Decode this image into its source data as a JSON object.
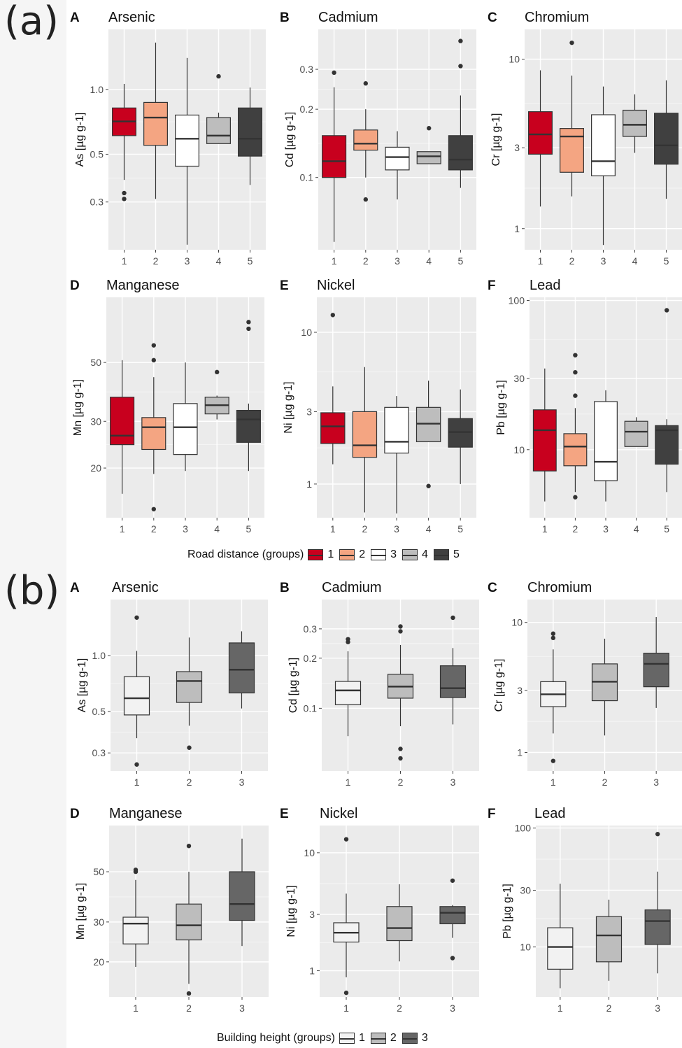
{
  "panels": [
    {
      "label": "(a)",
      "legend_title": "Road distance (groups)",
      "legend_keys": [
        "1",
        "2",
        "3",
        "4",
        "5"
      ],
      "colors": [
        "#c8001e",
        "#f4a582",
        "#ffffff",
        "#bdbdbd",
        "#404040"
      ]
    },
    {
      "label": "(b)",
      "legend_title": "Building height (groups)",
      "legend_keys": [
        "1",
        "2",
        "3"
      ],
      "colors": [
        "#f2f2f2",
        "#bdbdbd",
        "#666666"
      ]
    }
  ],
  "chart_data": [
    {
      "type": "box",
      "panel": "(a)",
      "letter": "A",
      "title": "Arsenic",
      "ylabel": "As [µg g-1]",
      "log_scale": true,
      "ylim": [
        0.18,
        1.9
      ],
      "yticks": [
        0.3,
        0.5,
        1.0
      ],
      "ytick_labels": [
        "0.3",
        "0.5",
        "1.0"
      ],
      "categories": [
        "1",
        "2",
        "3",
        "4",
        "5"
      ],
      "boxes": [
        {
          "min": 0.38,
          "q1": 0.61,
          "median": 0.71,
          "q3": 0.82,
          "max": 1.06,
          "outliers": [
            0.31,
            0.33
          ]
        },
        {
          "min": 0.31,
          "q1": 0.55,
          "median": 0.74,
          "q3": 0.87,
          "max": 1.65,
          "outliers": []
        },
        {
          "min": 0.19,
          "q1": 0.44,
          "median": 0.59,
          "q3": 0.76,
          "max": 1.4,
          "outliers": []
        },
        {
          "min": 0.56,
          "q1": 0.56,
          "median": 0.61,
          "q3": 0.74,
          "max": 0.78,
          "outliers": [
            1.15
          ]
        },
        {
          "min": 0.36,
          "q1": 0.49,
          "median": 0.59,
          "q3": 0.82,
          "max": 1.02,
          "outliers": []
        }
      ]
    },
    {
      "type": "box",
      "panel": "(a)",
      "letter": "B",
      "title": "Cadmium",
      "ylabel": "Cd [µg g-1]",
      "log_scale": true,
      "ylim": [
        0.048,
        0.45
      ],
      "yticks": [
        0.1,
        0.2,
        0.3
      ],
      "ytick_labels": [
        "0.1",
        "0.2",
        "0.3"
      ],
      "categories": [
        "1",
        "2",
        "3",
        "4",
        "5"
      ],
      "boxes": [
        {
          "min": 0.052,
          "q1": 0.1,
          "median": 0.118,
          "q3": 0.153,
          "max": 0.25,
          "outliers": [
            0.29
          ]
        },
        {
          "min": 0.1,
          "q1": 0.132,
          "median": 0.141,
          "q3": 0.162,
          "max": 0.2,
          "outliers": [
            0.08,
            0.26
          ]
        },
        {
          "min": 0.08,
          "q1": 0.108,
          "median": 0.123,
          "q3": 0.136,
          "max": 0.16,
          "outliers": []
        },
        {
          "min": 0.115,
          "q1": 0.115,
          "median": 0.124,
          "q3": 0.13,
          "max": 0.13,
          "outliers": [
            0.165
          ]
        },
        {
          "min": 0.09,
          "q1": 0.108,
          "median": 0.12,
          "q3": 0.153,
          "max": 0.23,
          "outliers": [
            0.31,
            0.4
          ]
        }
      ]
    },
    {
      "type": "box",
      "panel": "(a)",
      "letter": "C",
      "title": "Chromium",
      "ylabel": "Cr [µg g-1]",
      "log_scale": true,
      "ylim": [
        0.75,
        15
      ],
      "yticks": [
        1,
        3,
        10
      ],
      "ytick_labels": [
        "1",
        "3",
        "10"
      ],
      "categories": [
        "1",
        "2",
        "3",
        "4",
        "5"
      ],
      "boxes": [
        {
          "min": 1.35,
          "q1": 2.75,
          "median": 3.6,
          "q3": 4.9,
          "max": 8.6,
          "outliers": []
        },
        {
          "min": 1.55,
          "q1": 2.15,
          "median": 3.5,
          "q3": 3.9,
          "max": 8,
          "outliers": [
            12.5
          ]
        },
        {
          "min": 0.8,
          "q1": 2.05,
          "median": 2.5,
          "q3": 4.7,
          "max": 6.9,
          "outliers": []
        },
        {
          "min": 2.8,
          "q1": 3.5,
          "median": 4.1,
          "q3": 5.0,
          "max": 6.2,
          "outliers": []
        },
        {
          "min": 1.5,
          "q1": 2.4,
          "median": 3.1,
          "q3": 4.8,
          "max": 7.5,
          "outliers": []
        }
      ]
    },
    {
      "type": "box",
      "panel": "(a)",
      "letter": "D",
      "title": "Manganese",
      "ylabel": "Mn [µg g-1]",
      "log_scale": true,
      "ylim": [
        13,
        88
      ],
      "yticks": [
        20,
        30,
        50
      ],
      "ytick_labels": [
        "20",
        "30",
        "50"
      ],
      "categories": [
        "1",
        "2",
        "3",
        "4",
        "5"
      ],
      "boxes": [
        {
          "min": 16,
          "q1": 24.5,
          "median": 26.5,
          "q3": 37,
          "max": 51,
          "outliers": []
        },
        {
          "min": 19,
          "q1": 23.5,
          "median": 28.5,
          "q3": 31,
          "max": 44,
          "outliers": [
            14,
            51,
            58
          ]
        },
        {
          "min": 19.5,
          "q1": 22.5,
          "median": 28.5,
          "q3": 35,
          "max": 50,
          "outliers": []
        },
        {
          "min": 30.5,
          "q1": 32,
          "median": 34.5,
          "q3": 37,
          "max": 37.5,
          "outliers": [
            46
          ]
        },
        {
          "min": 19.5,
          "q1": 25,
          "median": 30.5,
          "q3": 33,
          "max": 35,
          "outliers": [
            67,
            71
          ]
        }
      ]
    },
    {
      "type": "box",
      "panel": "(a)",
      "letter": "E",
      "title": "Nickel",
      "ylabel": "Ni [µg g-1]",
      "log_scale": true,
      "ylim": [
        0.6,
        17
      ],
      "yticks": [
        1,
        3,
        10
      ],
      "ytick_labels": [
        "1",
        "3",
        "10"
      ],
      "categories": [
        "1",
        "2",
        "3",
        "4",
        "5"
      ],
      "boxes": [
        {
          "min": 1.35,
          "q1": 1.85,
          "median": 2.4,
          "q3": 2.95,
          "max": 4.4,
          "outliers": [
            13
          ]
        },
        {
          "min": 0.65,
          "q1": 1.5,
          "median": 1.8,
          "q3": 3.0,
          "max": 5.9,
          "outliers": []
        },
        {
          "min": 0.64,
          "q1": 1.6,
          "median": 1.9,
          "q3": 3.2,
          "max": 3.8,
          "outliers": []
        },
        {
          "min": 1.9,
          "q1": 1.9,
          "median": 2.5,
          "q3": 3.2,
          "max": 4.8,
          "outliers": [
            0.97
          ]
        },
        {
          "min": 1.0,
          "q1": 1.75,
          "median": 2.2,
          "q3": 2.7,
          "max": 4.2,
          "outliers": []
        }
      ]
    },
    {
      "type": "box",
      "panel": "(a)",
      "letter": "F",
      "title": "Lead",
      "ylabel": "Pb [µg g-1]",
      "log_scale": true,
      "ylim": [
        3.5,
        105
      ],
      "yticks": [
        10,
        30,
        100
      ],
      "ytick_labels": [
        "10",
        "30",
        "100"
      ],
      "categories": [
        "1",
        "2",
        "3",
        "4",
        "5"
      ],
      "boxes": [
        {
          "min": 4.5,
          "q1": 7.2,
          "median": 13.5,
          "q3": 18.5,
          "max": 35,
          "outliers": []
        },
        {
          "min": 5.2,
          "q1": 7.8,
          "median": 10.5,
          "q3": 12.8,
          "max": 19,
          "outliers": [
            4.8,
            23,
            33,
            43
          ]
        },
        {
          "min": 4.5,
          "q1": 6.2,
          "median": 8.3,
          "q3": 21,
          "max": 25,
          "outliers": []
        },
        {
          "min": 10.5,
          "q1": 10.5,
          "median": 13.2,
          "q3": 15.5,
          "max": 16.5,
          "outliers": []
        },
        {
          "min": 5.2,
          "q1": 8.0,
          "median": 13.5,
          "q3": 14.5,
          "max": 16,
          "outliers": [
            86
          ]
        }
      ]
    },
    {
      "type": "box",
      "panel": "(b)",
      "letter": "A",
      "title": "Arsenic",
      "ylabel": "As [µg g-1]",
      "log_scale": true,
      "ylim": [
        0.24,
        2.0
      ],
      "yticks": [
        0.3,
        0.5,
        1.0
      ],
      "ytick_labels": [
        "0.3",
        "0.5",
        "1.0"
      ],
      "categories": [
        "1",
        "2",
        "3"
      ],
      "boxes": [
        {
          "min": 0.36,
          "q1": 0.48,
          "median": 0.59,
          "q3": 0.77,
          "max": 1.06,
          "outliers": [
            0.26,
            1.6
          ]
        },
        {
          "min": 0.42,
          "q1": 0.56,
          "median": 0.73,
          "q3": 0.82,
          "max": 1.25,
          "outliers": [
            0.32
          ]
        },
        {
          "min": 0.52,
          "q1": 0.63,
          "median": 0.84,
          "q3": 1.17,
          "max": 1.35,
          "outliers": []
        }
      ]
    },
    {
      "type": "box",
      "panel": "(b)",
      "letter": "B",
      "title": "Cadmium",
      "ylabel": "Cd [µg g-1]",
      "log_scale": true,
      "ylim": [
        0.042,
        0.45
      ],
      "yticks": [
        0.1,
        0.2,
        0.3
      ],
      "ytick_labels": [
        "0.1",
        "0.2",
        "0.3"
      ],
      "categories": [
        "1",
        "2",
        "3"
      ],
      "boxes": [
        {
          "min": 0.068,
          "q1": 0.105,
          "median": 0.128,
          "q3": 0.145,
          "max": 0.22,
          "outliers": [
            0.25,
            0.26
          ]
        },
        {
          "min": 0.078,
          "q1": 0.115,
          "median": 0.135,
          "q3": 0.16,
          "max": 0.24,
          "outliers": [
            0.05,
            0.057,
            0.29,
            0.31
          ]
        },
        {
          "min": 0.08,
          "q1": 0.116,
          "median": 0.132,
          "q3": 0.18,
          "max": 0.23,
          "outliers": [
            0.35
          ]
        }
      ]
    },
    {
      "type": "box",
      "panel": "(b)",
      "letter": "C",
      "title": "Chromium",
      "ylabel": "Cr [µg g-1]",
      "log_scale": true,
      "ylim": [
        0.72,
        15
      ],
      "yticks": [
        1,
        3,
        10
      ],
      "ytick_labels": [
        "1",
        "3",
        "10"
      ],
      "categories": [
        "1",
        "2",
        "3"
      ],
      "boxes": [
        {
          "min": 1.4,
          "q1": 2.25,
          "median": 2.8,
          "q3": 3.5,
          "max": 6.2,
          "outliers": [
            0.86,
            7.6,
            8.2
          ]
        },
        {
          "min": 1.35,
          "q1": 2.5,
          "median": 3.5,
          "q3": 4.8,
          "max": 7.5,
          "outliers": []
        },
        {
          "min": 2.2,
          "q1": 3.2,
          "median": 4.8,
          "q3": 5.8,
          "max": 11,
          "outliers": []
        }
      ]
    },
    {
      "type": "box",
      "panel": "(b)",
      "letter": "D",
      "title": "Manganese",
      "ylabel": "Mn [µg g-1]",
      "log_scale": true,
      "ylim": [
        14,
        80
      ],
      "yticks": [
        20,
        30,
        50
      ],
      "ytick_labels": [
        "20",
        "30",
        "50"
      ],
      "categories": [
        "1",
        "2",
        "3"
      ],
      "boxes": [
        {
          "min": 19,
          "q1": 24,
          "median": 29.5,
          "q3": 31.5,
          "max": 46,
          "outliers": [
            50,
            51
          ]
        },
        {
          "min": 16,
          "q1": 25,
          "median": 29,
          "q3": 36,
          "max": 50,
          "outliers": [
            14.5,
            65
          ]
        },
        {
          "min": 23.5,
          "q1": 30.5,
          "median": 36,
          "q3": 50,
          "max": 70,
          "outliers": []
        }
      ]
    },
    {
      "type": "box",
      "panel": "(b)",
      "letter": "E",
      "title": "Nickel",
      "ylabel": "Ni [µg g-1]",
      "log_scale": true,
      "ylim": [
        0.6,
        17
      ],
      "yticks": [
        1,
        3,
        10
      ],
      "ytick_labels": [
        "1",
        "3",
        "10"
      ],
      "categories": [
        "1",
        "2",
        "3"
      ],
      "boxes": [
        {
          "min": 0.88,
          "q1": 1.75,
          "median": 2.1,
          "q3": 2.55,
          "max": 4.5,
          "outliers": [
            0.65,
            13
          ]
        },
        {
          "min": 1.2,
          "q1": 1.8,
          "median": 2.3,
          "q3": 3.5,
          "max": 5.4,
          "outliers": []
        },
        {
          "min": 1.9,
          "q1": 2.5,
          "median": 3.1,
          "q3": 3.5,
          "max": 3.6,
          "outliers": [
            1.28,
            5.8
          ]
        }
      ]
    },
    {
      "type": "box",
      "panel": "(b)",
      "letter": "F",
      "title": "Lead",
      "ylabel": "Pb [µg g-1]",
      "log_scale": true,
      "ylim": [
        3.8,
        105
      ],
      "yticks": [
        10,
        30,
        100
      ],
      "ytick_labels": [
        "10",
        "30",
        "100"
      ],
      "categories": [
        "1",
        "2",
        "3"
      ],
      "boxes": [
        {
          "min": 4.5,
          "q1": 6.5,
          "median": 10,
          "q3": 14.5,
          "max": 34,
          "outliers": []
        },
        {
          "min": 5.2,
          "q1": 7.5,
          "median": 12.5,
          "q3": 18,
          "max": 25,
          "outliers": []
        },
        {
          "min": 6,
          "q1": 10.5,
          "median": 16.5,
          "q3": 20.5,
          "max": 43,
          "outliers": [
            89
          ]
        }
      ]
    }
  ]
}
